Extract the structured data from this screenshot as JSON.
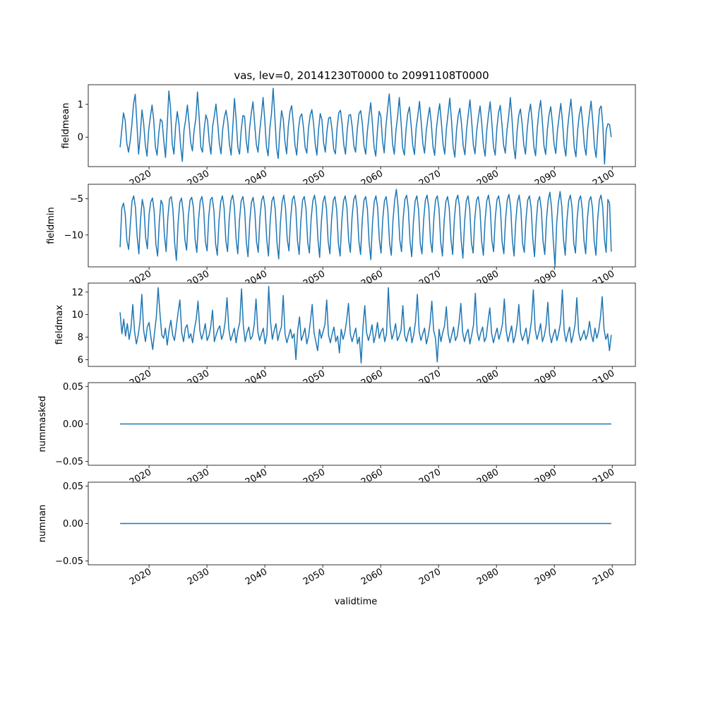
{
  "figure": {
    "title": "vas, lev=0, 20141230T0000 to 20991108T0000",
    "line_color": "#1f77b4"
  },
  "chart_data": [
    {
      "type": "line",
      "ylabel": "fieldmean",
      "xlabel": "",
      "x_range": [
        "2015-01",
        "2099-11"
      ],
      "xlim": [
        2009.5,
        2104.0
      ],
      "ylim": [
        -0.9,
        1.6
      ],
      "yticks": [
        0,
        1
      ],
      "ytick_labels": [
        "0",
        "1"
      ],
      "xticks": [
        2020,
        2030,
        2040,
        2050,
        2060,
        2070,
        2080,
        2090,
        2100
      ],
      "xtick_labels": [
        "2020",
        "2030",
        "2040",
        "2050",
        "2060",
        "2070",
        "2080",
        "2090",
        "2100"
      ],
      "series": [
        {
          "values": [
            -0.31,
            0.22,
            0.74,
            0.52,
            -0.18,
            -0.46,
            -0.12,
            0.38,
            1.02,
            1.31,
            0.41,
            -0.52,
            0.08,
            0.83,
            0.43,
            -0.24,
            -0.58,
            0.21,
            0.62,
            0.98,
            0.52,
            -0.31,
            -0.55,
            0.12,
            0.55,
            0.48,
            -0.12,
            -0.62,
            0.34,
            1.41,
            0.88,
            -0.21,
            -0.52,
            0.33,
            0.78,
            0.41,
            -0.28,
            -0.74,
            0.21,
            0.54,
            0.98,
            0.43,
            -0.18,
            -0.42,
            0.21,
            0.55,
            1.38,
            0.62,
            -0.31,
            -0.46,
            0.25,
            0.68,
            0.51,
            -0.15,
            -0.52,
            0.32,
            0.64,
            1.01,
            0.44,
            -0.19,
            -0.51,
            0.24,
            0.61,
            0.82,
            0.48,
            -0.22,
            -0.55,
            0.31,
            1.18,
            0.53,
            -0.31,
            -0.52,
            0.21,
            0.66,
            0.63,
            -0.12,
            -0.48,
            0.28,
            0.74,
            1.08,
            0.41,
            -0.23,
            -0.46,
            0.19,
            0.65,
            1.21,
            0.52,
            -0.29,
            -0.57,
            0.26,
            0.72,
            1.49,
            0.61,
            -0.32,
            -0.65,
            0.21,
            0.81,
            0.55,
            -0.14,
            -0.51,
            0.33,
            0.78,
            0.96,
            0.42,
            -0.26,
            -0.55,
            0.22,
            0.62,
            0.71,
            0.31,
            -0.32,
            -0.49,
            0.28,
            0.66,
            0.84,
            0.43,
            -0.21,
            -0.55,
            0.24,
            0.72,
            0.53,
            -0.18,
            -0.46,
            0.19,
            0.58,
            0.61,
            0.22,
            -0.38,
            -0.51,
            0.29,
            0.74,
            0.82,
            0.39,
            -0.24,
            -0.52,
            0.21,
            0.67,
            0.69,
            0.31,
            -0.28,
            -0.46,
            0.25,
            0.71,
            0.81,
            0.43,
            -0.27,
            -0.52,
            0.18,
            0.65,
            1.05,
            0.42,
            -0.31,
            -0.58,
            0.22,
            0.79,
            0.64,
            -0.11,
            -0.48,
            0.31,
            0.84,
            1.32,
            0.62,
            -0.22,
            -0.52,
            0.21,
            0.63,
            1.21,
            0.48,
            -0.34,
            -0.55,
            0.24,
            0.71,
            0.92,
            0.38,
            -0.26,
            -0.53,
            0.28,
            0.66,
            1.09,
            0.46,
            -0.21,
            -0.49,
            0.19,
            0.58,
            0.91,
            0.43,
            -0.29,
            -0.56,
            0.23,
            0.68,
            1.02,
            0.44,
            -0.22,
            -0.52,
            0.26,
            0.73,
            1.19,
            0.52,
            -0.31,
            -0.61,
            0.21,
            0.66,
            0.88,
            0.38,
            -0.28,
            -0.54,
            0.24,
            0.71,
            1.14,
            0.49,
            -0.24,
            -0.51,
            0.19,
            0.61,
            0.95,
            0.42,
            -0.27,
            -0.58,
            0.22,
            0.69,
            1.08,
            0.44,
            -0.31,
            -0.55,
            0.28,
            0.75,
            0.97,
            0.39,
            -0.25,
            -0.49,
            0.21,
            0.64,
            1.21,
            0.55,
            -0.29,
            -0.66,
            0.18,
            0.67,
            0.86,
            0.41,
            -0.24,
            -0.52,
            0.23,
            0.72,
            1.01,
            0.46,
            -0.31,
            -0.57,
            0.26,
            0.79,
            1.12,
            0.51,
            -0.27,
            -0.53,
            0.22,
            0.68,
            0.93,
            0.43,
            -0.22,
            -0.5,
            0.2,
            0.63,
            1.03,
            0.47,
            -0.28,
            -0.58,
            0.25,
            0.74,
            1.16,
            0.53,
            -0.33,
            -0.6,
            0.21,
            0.69,
            0.94,
            0.42,
            -0.26,
            -0.55,
            0.24,
            0.71,
            1.1,
            0.49,
            -0.3,
            -0.62,
            0.19,
            0.86,
            0.95,
            0.35,
            -0.82,
            0.21,
            0.41,
            0.38,
            0.0
          ]
        }
      ]
    },
    {
      "type": "line",
      "ylabel": "fieldmin",
      "xlabel": "",
      "x_range": [
        "2015-01",
        "2099-11"
      ],
      "xlim": [
        2009.5,
        2104.0
      ],
      "ylim": [
        -14.4,
        -3.0
      ],
      "yticks": [
        -10,
        -5
      ],
      "ytick_labels": [
        "−10",
        "−5"
      ],
      "xticks": [
        2020,
        2030,
        2040,
        2050,
        2060,
        2070,
        2080,
        2090,
        2100
      ],
      "xtick_labels": [
        "2020",
        "2030",
        "2040",
        "2050",
        "2060",
        "2070",
        "2080",
        "2090",
        "2100"
      ],
      "series": [
        {
          "values": [
            -11.7,
            -6.3,
            -5.6,
            -7.1,
            -10.8,
            -12.0,
            -8.5,
            -5.3,
            -4.6,
            -6.2,
            -10.2,
            -12.6,
            -7.8,
            -5.1,
            -6.3,
            -10.4,
            -11.9,
            -7.2,
            -5.4,
            -4.9,
            -6.8,
            -11.3,
            -12.9,
            -8.1,
            -5.2,
            -5.8,
            -10.1,
            -12.3,
            -7.6,
            -5.0,
            -4.7,
            -6.5,
            -11.1,
            -13.5,
            -8.4,
            -5.5,
            -4.9,
            -6.8,
            -10.7,
            -12.1,
            -7.5,
            -5.2,
            -4.8,
            -6.2,
            -10.6,
            -12.4,
            -7.9,
            -5.3,
            -4.7,
            -6.4,
            -10.9,
            -12.2,
            -7.4,
            -5.1,
            -4.8,
            -6.6,
            -11.2,
            -12.8,
            -8.0,
            -5.4,
            -4.6,
            -6.3,
            -10.8,
            -12.3,
            -7.7,
            -5.2,
            -4.5,
            -6.1,
            -10.5,
            -12.6,
            -7.9,
            -5.3,
            -4.7,
            -6.4,
            -11.0,
            -13.0,
            -8.2,
            -5.5,
            -4.8,
            -6.7,
            -10.9,
            -12.4,
            -7.6,
            -5.2,
            -4.6,
            -6.2,
            -10.7,
            -12.9,
            -8.1,
            -5.3,
            -4.7,
            -6.5,
            -11.1,
            -13.3,
            -8.3,
            -5.4,
            -4.5,
            -6.3,
            -10.6,
            -12.2,
            -7.7,
            -5.1,
            -4.6,
            -6.2,
            -10.8,
            -12.7,
            -8.0,
            -5.2,
            -4.7,
            -6.4,
            -11.0,
            -12.5,
            -7.8,
            -5.3,
            -4.5,
            -6.1,
            -10.6,
            -13.1,
            -8.2,
            -5.4,
            -4.6,
            -6.3,
            -10.9,
            -12.6,
            -7.9,
            -5.2,
            -4.7,
            -6.5,
            -11.2,
            -12.9,
            -8.1,
            -5.3,
            -4.6,
            -6.2,
            -10.7,
            -12.4,
            -7.6,
            -5.1,
            -4.5,
            -6.3,
            -10.8,
            -12.7,
            -7.9,
            -5.2,
            -4.7,
            -6.4,
            -11.0,
            -13.4,
            -8.3,
            -5.4,
            -4.6,
            -6.2,
            -10.6,
            -12.5,
            -7.8,
            -5.3,
            -4.7,
            -6.6,
            -11.1,
            -12.8,
            -8.0,
            -5.2,
            -3.7,
            -6.1,
            -10.7,
            -12.3,
            -7.7,
            -5.1,
            -4.5,
            -6.3,
            -10.9,
            -13.0,
            -8.2,
            -5.3,
            -4.6,
            -6.5,
            -11.2,
            -12.6,
            -7.9,
            -5.2,
            -4.5,
            -6.2,
            -10.8,
            -12.4,
            -7.6,
            -5.1,
            -4.6,
            -6.4,
            -11.0,
            -12.9,
            -8.1,
            -5.4,
            -4.7,
            -6.3,
            -10.6,
            -12.7,
            -7.8,
            -5.2,
            -4.5,
            -6.1,
            -10.7,
            -13.2,
            -8.2,
            -5.3,
            -4.6,
            -6.4,
            -11.1,
            -12.5,
            -7.7,
            -5.2,
            -4.7,
            -6.5,
            -10.9,
            -12.8,
            -8.0,
            -5.3,
            -4.5,
            -6.2,
            -10.8,
            -12.3,
            -7.6,
            -5.1,
            -4.6,
            -6.3,
            -11.0,
            -12.6,
            -7.9,
            -5.2,
            -4.4,
            -6.1,
            -10.7,
            -12.9,
            -8.1,
            -5.4,
            -4.5,
            -6.4,
            -11.2,
            -12.4,
            -7.8,
            -5.2,
            -4.6,
            -6.2,
            -10.6,
            -13.0,
            -8.2,
            -5.3,
            -4.7,
            -6.5,
            -10.9,
            -12.7,
            -7.9,
            -5.2,
            -4.1,
            -6.3,
            -10.8,
            -14.3,
            -8.4,
            -5.5,
            -4.0,
            -6.1,
            -10.7,
            -12.8,
            -8.0,
            -5.3,
            -4.5,
            -6.2,
            -11.1,
            -12.5,
            -7.7,
            -5.2,
            -4.6,
            -6.4,
            -10.8,
            -12.6,
            -7.8,
            -5.3,
            -4.7,
            -6.3,
            -10.9,
            -12.8,
            -7.9,
            -5.2,
            -4.5,
            -6.2,
            -10.6,
            -12.4,
            -5.1,
            -5.6,
            -12.3
          ]
        }
      ]
    },
    {
      "type": "line",
      "ylabel": "fieldmax",
      "xlabel": "",
      "x_range": [
        "2015-01",
        "2099-11"
      ],
      "xlim": [
        2009.5,
        2104.0
      ],
      "ylim": [
        5.4,
        12.8
      ],
      "yticks": [
        6,
        8,
        10,
        12
      ],
      "ytick_labels": [
        "6",
        "8",
        "10",
        "12"
      ],
      "xticks": [
        2020,
        2030,
        2040,
        2050,
        2060,
        2070,
        2080,
        2090,
        2100
      ],
      "xtick_labels": [
        "2020",
        "2030",
        "2040",
        "2050",
        "2060",
        "2070",
        "2080",
        "2090",
        "2100"
      ],
      "series": [
        {
          "values": [
            10.2,
            8.3,
            9.6,
            8.1,
            9.2,
            7.8,
            8.8,
            10.9,
            8.5,
            7.4,
            8.2,
            9.4,
            11.8,
            8.6,
            7.6,
            8.9,
            9.3,
            8.0,
            6.9,
            8.4,
            9.8,
            12.4,
            10.1,
            8.2,
            7.9,
            8.8,
            7.3,
            8.6,
            9.5,
            8.2,
            7.7,
            8.9,
            10.2,
            11.3,
            8.4,
            7.6,
            8.8,
            9.1,
            7.9,
            8.3,
            7.5,
            8.7,
            9.6,
            11.2,
            8.6,
            7.8,
            8.4,
            9.2,
            7.7,
            8.1,
            8.9,
            10.4,
            7.6,
            8.2,
            8.7,
            9.0,
            7.8,
            8.3,
            9.4,
            11.5,
            8.7,
            7.7,
            8.2,
            8.8,
            7.5,
            8.6,
            9.3,
            12.3,
            9.0,
            7.6,
            8.4,
            8.9,
            7.8,
            8.1,
            9.1,
            11.4,
            8.5,
            7.7,
            8.3,
            8.8,
            7.4,
            8.2,
            12.5,
            9.4,
            7.8,
            8.6,
            9.2,
            7.7,
            8.4,
            8.9,
            11.7,
            8.3,
            7.5,
            8.1,
            8.7,
            7.9,
            8.3,
            6.0,
            8.6,
            9.8,
            7.7,
            8.2,
            8.8,
            7.4,
            8.1,
            9.4,
            10.9,
            8.4,
            7.6,
            6.8,
            8.7,
            7.9,
            8.5,
            9.1,
            11.3,
            8.2,
            7.5,
            8.3,
            8.9,
            7.6,
            8.1,
            6.6,
            8.7,
            7.8,
            8.4,
            9.5,
            11.0,
            8.3,
            7.6,
            8.2,
            8.8,
            7.4,
            8.0,
            5.7,
            8.9,
            10.8,
            8.4,
            7.7,
            8.3,
            9.1,
            7.5,
            8.2,
            9.3,
            7.9,
            8.5,
            8.8,
            7.6,
            8.3,
            12.4,
            9.0,
            7.8,
            8.4,
            9.2,
            7.7,
            8.1,
            8.6,
            10.8,
            8.2,
            7.6,
            8.4,
            8.9,
            7.5,
            8.2,
            9.4,
            11.8,
            8.5,
            7.7,
            8.3,
            8.8,
            7.4,
            8.1,
            9.2,
            11.2,
            8.6,
            7.9,
            5.8,
            8.7,
            7.6,
            8.4,
            9.0,
            10.7,
            8.3,
            7.5,
            8.2,
            8.9,
            7.7,
            8.1,
            9.3,
            11.0,
            8.4,
            7.6,
            8.3,
            8.7,
            7.4,
            8.2,
            9.1,
            11.9,
            8.5,
            7.7,
            8.4,
            8.9,
            7.6,
            8.0,
            9.4,
            10.6,
            8.3,
            7.5,
            8.2,
            8.8,
            7.8,
            8.4,
            9.2,
            11.4,
            8.6,
            7.6,
            8.3,
            9.0,
            7.5,
            8.1,
            9.1,
            10.9,
            8.4,
            7.7,
            8.2,
            8.8,
            7.4,
            8.3,
            9.5,
            12.2,
            8.7,
            7.8,
            8.4,
            9.2,
            7.6,
            8.1,
            9.0,
            11.1,
            8.3,
            7.5,
            8.2,
            8.7,
            7.7,
            8.4,
            9.3,
            12.2,
            8.6,
            7.6,
            8.3,
            8.9,
            7.5,
            8.2,
            9.1,
            11.5,
            8.4,
            7.7,
            8.1,
            8.6,
            7.8,
            8.3,
            9.4,
            8.2,
            7.6,
            8.8,
            7.9,
            8.5,
            9.7,
            11.6,
            8.7,
            7.8,
            8.3,
            6.8,
            8.2
          ]
        }
      ]
    },
    {
      "type": "line",
      "ylabel": "nummasked",
      "xlabel": "",
      "x_range": [
        "2015-01",
        "2099-11"
      ],
      "xlim": [
        2009.5,
        2104.0
      ],
      "ylim": [
        -0.055,
        0.055
      ],
      "yticks": [
        -0.05,
        0.0,
        0.05
      ],
      "ytick_labels": [
        "−0.05",
        "0.00",
        "0.05"
      ],
      "xticks": [
        2020,
        2030,
        2040,
        2050,
        2060,
        2070,
        2080,
        2090,
        2100
      ],
      "xtick_labels": [
        "2020",
        "2030",
        "2040",
        "2050",
        "2060",
        "2070",
        "2080",
        "2090",
        "2100"
      ],
      "series": [
        {
          "values": [
            0,
            0
          ]
        }
      ]
    },
    {
      "type": "line",
      "ylabel": "numnan",
      "xlabel": "validtime",
      "x_range": [
        "2015-01",
        "2099-11"
      ],
      "xlim": [
        2009.5,
        2104.0
      ],
      "ylim": [
        -0.055,
        0.055
      ],
      "yticks": [
        -0.05,
        0.0,
        0.05
      ],
      "ytick_labels": [
        "−0.05",
        "0.00",
        "0.05"
      ],
      "xticks": [
        2020,
        2030,
        2040,
        2050,
        2060,
        2070,
        2080,
        2090,
        2100
      ],
      "xtick_labels": [
        "2020",
        "2030",
        "2040",
        "2050",
        "2060",
        "2070",
        "2080",
        "2090",
        "2100"
      ],
      "series": [
        {
          "values": [
            0,
            0
          ]
        }
      ]
    }
  ]
}
